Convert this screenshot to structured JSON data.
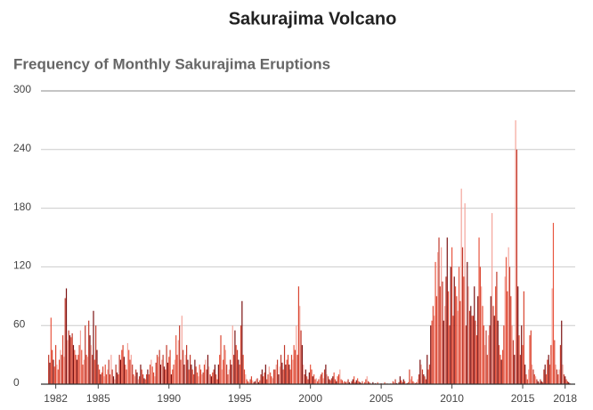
{
  "chart_data": {
    "type": "bar",
    "title": "Sakurajima Volcano",
    "subtitle": "Frequency of Monthly Sakurajima Eruptions",
    "ylim": [
      0,
      300
    ],
    "yticks": [
      0,
      60,
      120,
      180,
      240,
      300
    ],
    "grid": true,
    "colors": [
      "#c0392b",
      "#e8553f",
      "#f4a49a",
      "#7a1010",
      "#d9442f"
    ],
    "categories": [
      null,
      null,
      null,
      null,
      null,
      null,
      "1982",
      null,
      null,
      null,
      null,
      null,
      null,
      null,
      null,
      null,
      null,
      null,
      null,
      null,
      null,
      null,
      null,
      null,
      null,
      null,
      null,
      null,
      null,
      null,
      null,
      null,
      null,
      null,
      null,
      null,
      null,
      null,
      null,
      null,
      null,
      null,
      "1985",
      null,
      null,
      null,
      null,
      null,
      null,
      null,
      null,
      null,
      null,
      null,
      null,
      null,
      null,
      null,
      null,
      null,
      null,
      null,
      null,
      null,
      null,
      null,
      null,
      null,
      null,
      null,
      null,
      null,
      null,
      null,
      null,
      null,
      null,
      null,
      null,
      null,
      null,
      null,
      null,
      null,
      null,
      null,
      null,
      null,
      null,
      null,
      null,
      null,
      null,
      null,
      null,
      null,
      null,
      null,
      null,
      null,
      null,
      null,
      "1990",
      null,
      null,
      null,
      null,
      null,
      null,
      null,
      null,
      null,
      null,
      null,
      null,
      null,
      null,
      null,
      null,
      null,
      null,
      null,
      null,
      null,
      null,
      null,
      null,
      null,
      null,
      null,
      null,
      null,
      null,
      null,
      null,
      null,
      null,
      null,
      null,
      null,
      null,
      null,
      null,
      null,
      null,
      null,
      null,
      null,
      null,
      null,
      null,
      null,
      null,
      null,
      null,
      null,
      null,
      null,
      null,
      null,
      null,
      null,
      "1995",
      null,
      null,
      null,
      null,
      null,
      null,
      null,
      null,
      null,
      null,
      null,
      null,
      null,
      null,
      null,
      null,
      null,
      null,
      null,
      null,
      null,
      null,
      null,
      null,
      null,
      null,
      null,
      null,
      null,
      null,
      null,
      null,
      null,
      null,
      null,
      null,
      null,
      null,
      null,
      null,
      null,
      null,
      null,
      null,
      null,
      null,
      null,
      null,
      null,
      null,
      null,
      null,
      null,
      null,
      null,
      null,
      null,
      null,
      null,
      "2000",
      null,
      null,
      null,
      null,
      null,
      null,
      null,
      null,
      null,
      null,
      null,
      null,
      null,
      null,
      null,
      null,
      null,
      null,
      null,
      null,
      null,
      null,
      null,
      null,
      null,
      null,
      null,
      null,
      null,
      null,
      null,
      null,
      null,
      null,
      null,
      null,
      null,
      null,
      null,
      null,
      null,
      null,
      null,
      null,
      null,
      null,
      null,
      null,
      null,
      null,
      null,
      null,
      null,
      null,
      null,
      null,
      null,
      null,
      null,
      "2005",
      null,
      null,
      null,
      null,
      null,
      null,
      null,
      null,
      null,
      null,
      null,
      null,
      null,
      null,
      null,
      null,
      null,
      null,
      null,
      null,
      null,
      null,
      null,
      null,
      null,
      null,
      null,
      null,
      null,
      null,
      null,
      null,
      null,
      null,
      null,
      null,
      null,
      null,
      null,
      null,
      null,
      null,
      null,
      null,
      null,
      null,
      null,
      null,
      null,
      null,
      null,
      null,
      null,
      null,
      null,
      null,
      null,
      null,
      null,
      "2010",
      null,
      null,
      null,
      null,
      null,
      null,
      null,
      null,
      null,
      null,
      null,
      null,
      null,
      null,
      null,
      null,
      null,
      null,
      null,
      null,
      null,
      null,
      null,
      null,
      null,
      null,
      null,
      null,
      null,
      null,
      null,
      null,
      null,
      null,
      null,
      null,
      null,
      null,
      null,
      null,
      null,
      null,
      null,
      null,
      null,
      null,
      null,
      null,
      null,
      null,
      null,
      null,
      null,
      null,
      null,
      null,
      null,
      null,
      null,
      "2015",
      null,
      null,
      null,
      null,
      null,
      null,
      null,
      null,
      null,
      null,
      null,
      null,
      null,
      null,
      null,
      null,
      null,
      null,
      null,
      null,
      null,
      null,
      null,
      null,
      null,
      null,
      null,
      null,
      null,
      null,
      null,
      null,
      null,
      null,
      null,
      "2018",
      null,
      null,
      null,
      null,
      null
    ],
    "values": [
      30,
      22,
      68,
      35,
      25,
      18,
      40,
      20,
      15,
      25,
      35,
      30,
      50,
      28,
      88,
      98,
      45,
      55,
      50,
      48,
      52,
      40,
      35,
      30,
      25,
      30,
      40,
      55,
      35,
      20,
      25,
      60,
      30,
      28,
      65,
      50,
      40,
      30,
      75,
      25,
      60,
      35,
      20,
      15,
      10,
      12,
      18,
      8,
      20,
      10,
      15,
      25,
      10,
      30,
      15,
      8,
      5,
      20,
      12,
      10,
      30,
      25,
      35,
      40,
      28,
      20,
      15,
      42,
      35,
      25,
      30,
      20,
      10,
      8,
      15,
      12,
      5,
      8,
      20,
      15,
      10,
      6,
      5,
      10,
      15,
      10,
      20,
      25,
      18,
      12,
      8,
      22,
      30,
      28,
      35,
      20,
      25,
      30,
      18,
      15,
      40,
      22,
      28,
      35,
      10,
      15,
      20,
      25,
      50,
      30,
      45,
      60,
      25,
      70,
      35,
      20,
      30,
      40,
      25,
      15,
      30,
      20,
      15,
      10,
      25,
      18,
      12,
      8,
      20,
      15,
      10,
      12,
      20,
      25,
      15,
      30,
      18,
      10,
      8,
      12,
      15,
      20,
      10,
      5,
      20,
      30,
      50,
      15,
      25,
      40,
      35,
      20,
      10,
      15,
      25,
      20,
      60,
      30,
      55,
      40,
      35,
      25,
      20,
      60,
      85,
      30,
      15,
      10,
      5,
      3,
      2,
      5,
      8,
      4,
      2,
      3,
      5,
      6,
      2,
      4,
      10,
      15,
      8,
      12,
      20,
      5,
      10,
      18,
      12,
      8,
      6,
      15,
      15,
      20,
      25,
      10,
      18,
      30,
      22,
      15,
      40,
      20,
      25,
      30,
      20,
      15,
      30,
      25,
      40,
      35,
      60,
      30,
      100,
      80,
      55,
      40,
      20,
      10,
      15,
      8,
      5,
      12,
      20,
      15,
      8,
      10,
      5,
      6,
      3,
      5,
      8,
      10,
      12,
      6,
      15,
      20,
      10,
      8,
      5,
      4,
      6,
      8,
      12,
      5,
      3,
      8,
      10,
      15,
      5,
      4,
      2,
      3,
      2,
      3,
      5,
      2,
      1,
      3,
      5,
      8,
      2,
      4,
      6,
      3,
      2,
      1,
      3,
      0,
      2,
      5,
      8,
      3,
      2,
      1,
      0,
      2,
      0,
      1,
      0,
      2,
      0,
      0,
      1,
      0,
      0,
      2,
      0,
      1,
      0,
      0,
      1,
      0,
      3,
      2,
      5,
      1,
      0,
      2,
      8,
      4,
      2,
      5,
      3,
      0,
      1,
      2,
      15,
      5,
      8,
      3,
      2,
      1,
      2,
      5,
      10,
      25,
      20,
      15,
      10,
      8,
      5,
      30,
      15,
      20,
      60,
      65,
      80,
      70,
      125,
      90,
      135,
      150,
      100,
      140,
      105,
      65,
      80,
      110,
      150,
      95,
      60,
      120,
      140,
      70,
      110,
      100,
      90,
      75,
      120,
      85,
      200,
      140,
      110,
      185,
      60,
      125,
      100,
      75,
      80,
      70,
      70,
      100,
      65,
      50,
      90,
      150,
      120,
      100,
      80,
      60,
      40,
      55,
      30,
      50,
      60,
      90,
      175,
      80,
      70,
      100,
      115,
      65,
      40,
      30,
      25,
      35,
      60,
      110,
      130,
      95,
      140,
      120,
      90,
      60,
      45,
      30,
      270,
      240,
      100,
      50,
      30,
      60,
      40,
      95,
      20,
      10,
      5,
      15,
      50,
      55,
      20,
      15,
      10,
      8,
      5,
      3,
      2,
      5,
      3,
      2,
      15,
      20,
      10,
      25,
      30,
      20,
      40,
      98,
      165,
      45,
      20,
      15,
      10,
      15,
      40,
      65,
      20,
      10,
      8,
      5,
      3,
      2,
      1,
      0
    ]
  }
}
